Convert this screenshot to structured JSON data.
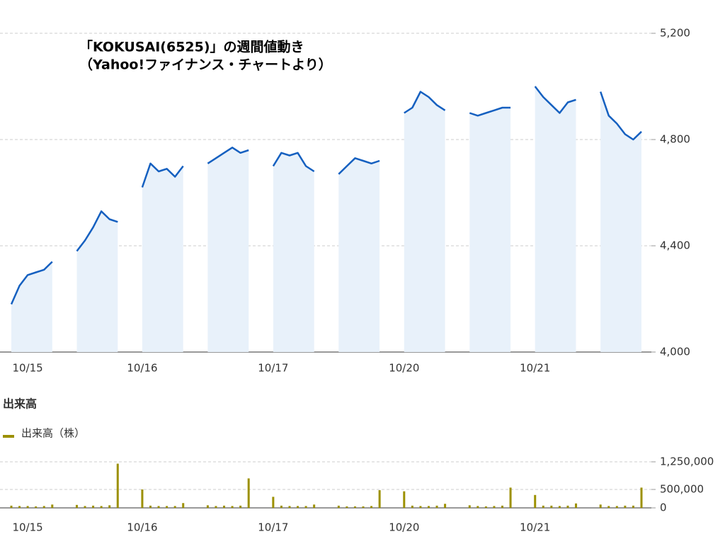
{
  "chart_data": [
    {
      "type": "area",
      "title": "「KOKUSAI(6525)」の週間値動き",
      "subtitle": "（Yahoo!ファイナンス・チャートより）",
      "color": "#1560c0",
      "fill": "#e8f1fa",
      "categories": [
        null,
        null,
        "10/15",
        null,
        null,
        null,
        null,
        null,
        null,
        null,
        null,
        null,
        null,
        null,
        null,
        null,
        "10/16",
        null,
        null,
        null,
        null,
        null,
        null,
        null,
        null,
        null,
        null,
        null,
        null,
        null,
        null,
        null,
        "10/17",
        null,
        null,
        null,
        null,
        null,
        null,
        null,
        null,
        null,
        null,
        null,
        null,
        null,
        null,
        null,
        "10/20",
        null,
        null,
        null,
        null,
        null,
        null,
        null,
        null,
        null,
        null,
        null,
        null,
        null,
        null,
        null,
        "10/21",
        null,
        null,
        null,
        null,
        null,
        null,
        null,
        null,
        null,
        null,
        null,
        null,
        null
      ],
      "values": [
        4180,
        4250,
        4290,
        4300,
        4310,
        4340,
        null,
        null,
        4380,
        4420,
        4470,
        4530,
        4500,
        4490,
        null,
        null,
        4620,
        4710,
        4680,
        4690,
        4660,
        4700,
        null,
        null,
        4710,
        4730,
        4750,
        4770,
        4750,
        4760,
        null,
        null,
        4700,
        4750,
        4740,
        4750,
        4700,
        4680,
        null,
        null,
        4670,
        4700,
        4730,
        4720,
        4710,
        4720,
        null,
        null,
        4900,
        4920,
        4980,
        4960,
        4930,
        4910,
        null,
        null,
        4900,
        4890,
        4900,
        4910,
        4920,
        4920,
        null,
        null,
        5000,
        4960,
        4930,
        4900,
        4940,
        4950,
        null,
        null,
        4980,
        4890,
        4860,
        4820,
        4800,
        4830
      ],
      "ylim": [
        4000,
        5200
      ],
      "yticks": [
        {
          "value": 4000,
          "label": "4,000"
        },
        {
          "value": 4400,
          "label": "4,400"
        },
        {
          "value": 4800,
          "label": "4,800"
        },
        {
          "value": 5200,
          "label": "5,200"
        }
      ],
      "grid": true
    },
    {
      "type": "bar",
      "title": "出来高",
      "categories": [
        null,
        null,
        "10/15",
        null,
        null,
        null,
        null,
        null,
        null,
        null,
        null,
        null,
        null,
        null,
        null,
        null,
        "10/16",
        null,
        null,
        null,
        null,
        null,
        null,
        null,
        null,
        null,
        null,
        null,
        null,
        null,
        null,
        null,
        "10/17",
        null,
        null,
        null,
        null,
        null,
        null,
        null,
        null,
        null,
        null,
        null,
        null,
        null,
        null,
        null,
        "10/20",
        null,
        null,
        null,
        null,
        null,
        null,
        null,
        null,
        null,
        null,
        null,
        null,
        null,
        null,
        null,
        "10/21",
        null,
        null,
        null,
        null,
        null,
        null,
        null,
        null,
        null,
        null,
        null,
        null,
        null
      ],
      "series": [
        {
          "name": "出来高（株）",
          "color": "#9c9000",
          "values": [
            60000,
            50000,
            50000,
            40000,
            50000,
            90000,
            null,
            null,
            80000,
            50000,
            60000,
            50000,
            70000,
            1200000,
            null,
            null,
            500000,
            60000,
            50000,
            50000,
            50000,
            130000,
            null,
            null,
            70000,
            50000,
            60000,
            50000,
            60000,
            800000,
            null,
            null,
            300000,
            60000,
            50000,
            50000,
            50000,
            90000,
            null,
            null,
            60000,
            40000,
            40000,
            40000,
            50000,
            480000,
            null,
            null,
            450000,
            60000,
            50000,
            50000,
            60000,
            110000,
            null,
            null,
            70000,
            50000,
            40000,
            50000,
            60000,
            550000,
            null,
            null,
            350000,
            60000,
            60000,
            50000,
            60000,
            120000,
            null,
            null,
            90000,
            50000,
            50000,
            60000,
            60000,
            550000
          ]
        }
      ],
      "ylim": [
        0,
        1250000
      ],
      "yticks": [
        0,
        {
          "value": 500000,
          "label": "500,000"
        },
        {
          "value": 1250000,
          "label": "1,250,000"
        }
      ],
      "grid": true
    }
  ]
}
